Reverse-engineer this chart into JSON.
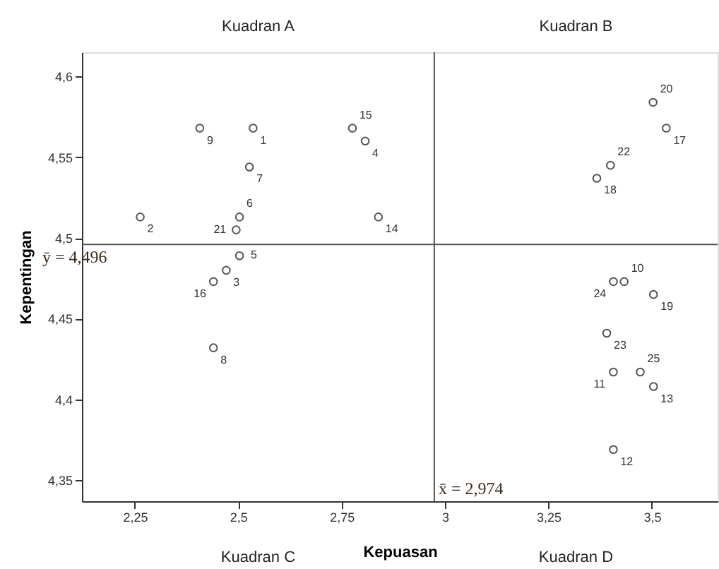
{
  "chart_data": {
    "type": "scatter",
    "xlabel": "Kepuasan",
    "ylabel": "Kepentingan",
    "marker": "circle",
    "grid": false,
    "series": [
      {
        "color": "#555555",
        "x": [
          2.536,
          2.263,
          2.471,
          2.807,
          2.503,
          2.503,
          2.527,
          2.44,
          2.407,
          3.433,
          3.407,
          3.407,
          3.504,
          2.839,
          2.776,
          2.44,
          3.535,
          3.367,
          3.504,
          3.503,
          2.495,
          3.4,
          3.391,
          3.407,
          3.472
        ],
        "values": [
          4.568,
          4.513,
          4.48,
          4.56,
          4.489,
          4.513,
          4.544,
          4.432,
          4.568,
          4.473,
          4.417,
          4.369,
          4.408,
          4.513,
          4.568,
          4.473,
          4.568,
          4.537,
          4.465,
          4.584,
          4.505,
          4.545,
          4.441,
          4.473,
          4.417
        ]
      }
    ],
    "xlim": [
      2.122,
      3.659
    ],
    "ylim": [
      4.337,
      4.615
    ],
    "xticks": [
      {
        "value": 2.25,
        "label": "2,25"
      },
      {
        "value": 2.5,
        "label": "2,5"
      },
      {
        "value": 2.75,
        "label": "2,75"
      },
      3,
      {
        "value": 3.25,
        "label": "3,25"
      },
      {
        "value": 3.5,
        "label": "3,5"
      }
    ],
    "yticks": [
      {
        "value": 4.35,
        "label": "4,35"
      },
      {
        "value": 4.4,
        "label": "4,4"
      },
      {
        "value": 4.45,
        "label": "4,45"
      },
      {
        "value": 4.5,
        "label": "4,5"
      },
      {
        "value": 4.55,
        "label": "4,55"
      },
      {
        "value": 4.6,
        "label": "4,6"
      }
    ],
    "ref_lines": [
      {
        "axis": "y",
        "value": 4.496,
        "label": "ȳ = 4,496",
        "color": "#555555"
      },
      {
        "axis": "x",
        "value": 2.974,
        "label": "x̄ = 2,974",
        "color": "#555555"
      }
    ],
    "annotations": [
      "Kuadran A",
      "Kuadran B",
      "Kuadran C",
      "Kuadran D",
      {
        "text": "1",
        "x": 2.536,
        "y": 4.568
      },
      {
        "text": "2",
        "x": 2.263,
        "y": 4.513
      },
      {
        "text": "3",
        "x": 2.471,
        "y": 4.48
      },
      {
        "text": "4",
        "x": 2.807,
        "y": 4.56
      },
      {
        "text": "5",
        "x": 2.503,
        "y": 4.489
      },
      {
        "text": "6",
        "x": 2.503,
        "y": 4.513
      },
      {
        "text": "7",
        "x": 2.527,
        "y": 4.544
      },
      {
        "text": "8",
        "x": 2.44,
        "y": 4.432
      },
      {
        "text": "9",
        "x": 2.407,
        "y": 4.568
      },
      {
        "text": "10",
        "x": 3.433,
        "y": 4.473
      },
      {
        "text": "11",
        "x": 3.407,
        "y": 4.417
      },
      {
        "text": "12",
        "x": 3.407,
        "y": 4.369
      },
      {
        "text": "13",
        "x": 3.504,
        "y": 4.408
      },
      {
        "text": "14",
        "x": 2.839,
        "y": 4.513
      },
      {
        "text": "15",
        "x": 2.776,
        "y": 4.568
      },
      {
        "text": "16",
        "x": 2.44,
        "y": 4.473
      },
      {
        "text": "17",
        "x": 3.535,
        "y": 4.568
      },
      {
        "text": "18",
        "x": 3.367,
        "y": 4.537
      },
      {
        "text": "19",
        "x": 3.504,
        "y": 4.465
      },
      {
        "text": "20",
        "x": 3.503,
        "y": 4.584
      },
      {
        "text": "21",
        "x": 2.495,
        "y": 4.505
      },
      {
        "text": "22",
        "x": 3.4,
        "y": 4.545
      },
      {
        "text": "23",
        "x": 3.391,
        "y": 4.441
      },
      {
        "text": "24",
        "x": 3.407,
        "y": 4.473
      },
      {
        "text": "25",
        "x": 3.472,
        "y": 4.417
      }
    ]
  }
}
